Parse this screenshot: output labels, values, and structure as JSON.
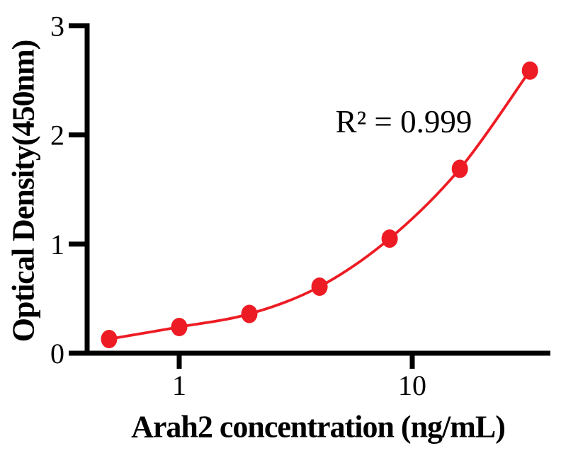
{
  "chart_data": {
    "type": "scatter",
    "title": "",
    "xlabel": "Arah2 concentration (ng/mL)",
    "ylabel": "Optical Density(450nm)",
    "annotation": "R² = 0.999",
    "x_scale": "log",
    "y_scale": "linear",
    "x": [
      0.5,
      1,
      2,
      4,
      8,
      16,
      32
    ],
    "y": [
      0.13,
      0.24,
      0.36,
      0.61,
      1.05,
      1.69,
      2.59
    ],
    "x_tick_values": [
      1,
      10
    ],
    "x_tick_labels": [
      "1",
      "10"
    ],
    "y_tick_values": [
      0,
      1,
      2,
      3
    ],
    "y_tick_labels": [
      "0",
      "1",
      "2",
      "3"
    ],
    "xlim": [
      0.42,
      38
    ],
    "ylim": [
      0,
      3
    ],
    "grid": false,
    "legend": "none",
    "marker": "filled-circle",
    "line": "smooth-fit-curve",
    "colors": {
      "series": "#ED1C24",
      "axis": "#000000",
      "text": "#000000",
      "background": "#FFFFFF"
    }
  }
}
